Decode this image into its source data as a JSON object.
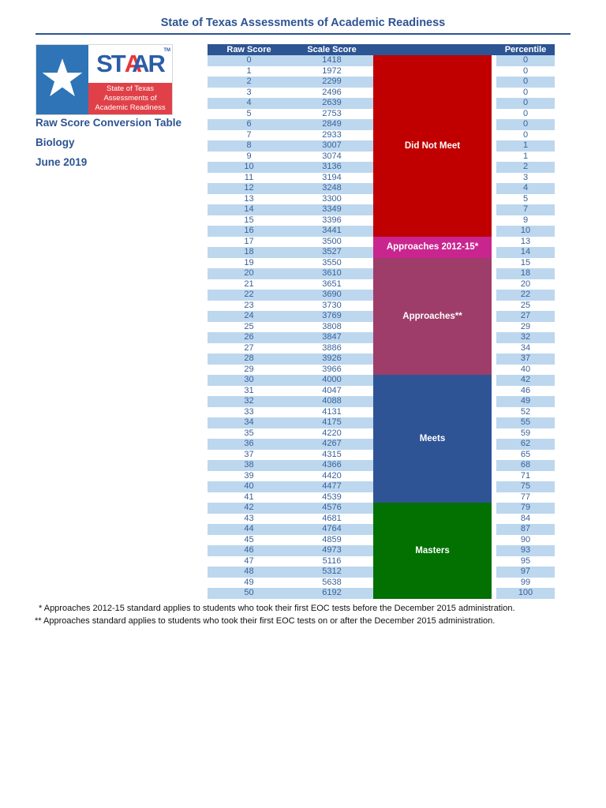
{
  "title": "State of Texas Assessments of Academic Readiness",
  "logo": {
    "star_icon": "texas-star",
    "brand_st": "ST",
    "brand_a1": "A",
    "brand_a2": "A",
    "brand_r": "R",
    "trademark": "TM",
    "tagline_lines": [
      "State of Texas",
      "Assessments of",
      "Academic Readiness"
    ],
    "flag_blue": "#2E74B6",
    "tagline_red": "#E04149"
  },
  "doc_info": {
    "line1": "Raw Score Conversion Table",
    "line2": "Biology",
    "line3": "June 2019"
  },
  "table": {
    "headers": {
      "raw": "Raw Score",
      "scale": "Scale Score",
      "percentile": "Percentile"
    },
    "rows": [
      [
        0,
        1418,
        0
      ],
      [
        1,
        1972,
        0
      ],
      [
        2,
        2299,
        0
      ],
      [
        3,
        2496,
        0
      ],
      [
        4,
        2639,
        0
      ],
      [
        5,
        2753,
        0
      ],
      [
        6,
        2849,
        0
      ],
      [
        7,
        2933,
        0
      ],
      [
        8,
        3007,
        1
      ],
      [
        9,
        3074,
        1
      ],
      [
        10,
        3136,
        2
      ],
      [
        11,
        3194,
        3
      ],
      [
        12,
        3248,
        4
      ],
      [
        13,
        3300,
        5
      ],
      [
        14,
        3349,
        7
      ],
      [
        15,
        3396,
        9
      ],
      [
        16,
        3441,
        10
      ],
      [
        17,
        3500,
        13
      ],
      [
        18,
        3527,
        14
      ],
      [
        19,
        3550,
        15
      ],
      [
        20,
        3610,
        18
      ],
      [
        21,
        3651,
        20
      ],
      [
        22,
        3690,
        22
      ],
      [
        23,
        3730,
        25
      ],
      [
        24,
        3769,
        27
      ],
      [
        25,
        3808,
        29
      ],
      [
        26,
        3847,
        32
      ],
      [
        27,
        3886,
        34
      ],
      [
        28,
        3926,
        37
      ],
      [
        29,
        3966,
        40
      ],
      [
        30,
        4000,
        42
      ],
      [
        31,
        4047,
        46
      ],
      [
        32,
        4088,
        49
      ],
      [
        33,
        4131,
        52
      ],
      [
        34,
        4175,
        55
      ],
      [
        35,
        4220,
        59
      ],
      [
        36,
        4267,
        62
      ],
      [
        37,
        4315,
        65
      ],
      [
        38,
        4366,
        68
      ],
      [
        39,
        4420,
        71
      ],
      [
        40,
        4477,
        75
      ],
      [
        41,
        4539,
        77
      ],
      [
        42,
        4576,
        79
      ],
      [
        43,
        4681,
        84
      ],
      [
        44,
        4764,
        87
      ],
      [
        45,
        4859,
        90
      ],
      [
        46,
        4973,
        93
      ],
      [
        47,
        5116,
        95
      ],
      [
        48,
        5312,
        97
      ],
      [
        49,
        5638,
        99
      ],
      [
        50,
        6192,
        100
      ]
    ],
    "bands": [
      {
        "label": "Did Not Meet",
        "start": 0,
        "count": 17,
        "color": "#C00000"
      },
      {
        "label": "Approaches 2012-15*",
        "start": 17,
        "count": 2,
        "color": "#C9258F"
      },
      {
        "label": "Approaches**",
        "start": 19,
        "count": 11,
        "color": "#9E3D69"
      },
      {
        "label": "Meets",
        "start": 30,
        "count": 12,
        "color": "#2F5496"
      },
      {
        "label": "Masters",
        "start": 42,
        "count": 9,
        "color": "#027102"
      }
    ]
  },
  "footnotes": [
    "* Approaches 2012-15 standard applies to students who took their first EOC tests before the December 2015 administration.",
    "** Approaches standard applies to students who took their first EOC tests on or after the December 2015 administration."
  ],
  "colors": {
    "header_bar": "#2D5493",
    "row_stripe": "#BDD7EE",
    "number_text": "#37629A",
    "title_text": "#2D5493"
  }
}
